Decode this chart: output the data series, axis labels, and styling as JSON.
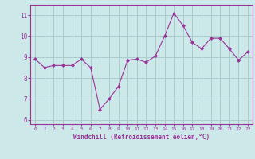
{
  "x": [
    0,
    1,
    2,
    3,
    4,
    5,
    6,
    7,
    8,
    9,
    10,
    11,
    12,
    13,
    14,
    15,
    16,
    17,
    18,
    19,
    20,
    21,
    22,
    23
  ],
  "y": [
    8.9,
    8.5,
    8.6,
    8.6,
    8.6,
    8.9,
    8.5,
    6.5,
    7.0,
    7.6,
    8.85,
    8.9,
    8.75,
    9.05,
    10.0,
    11.1,
    10.5,
    9.7,
    9.4,
    9.9,
    9.9,
    9.4,
    8.85,
    9.25
  ],
  "line_color": "#993399",
  "marker": "D",
  "marker_size": 2,
  "bg_color": "#cce8e8",
  "grid_color": "#aacccc",
  "xlabel": "Windchill (Refroidissement éolien,°C)",
  "xlabel_color": "#993399",
  "tick_color": "#993399",
  "ylim": [
    5.8,
    11.5
  ],
  "yticks": [
    6,
    7,
    8,
    9,
    10,
    11
  ],
  "xticks": [
    0,
    1,
    2,
    3,
    4,
    5,
    6,
    7,
    8,
    9,
    10,
    11,
    12,
    13,
    14,
    15,
    16,
    17,
    18,
    19,
    20,
    21,
    22,
    23
  ]
}
